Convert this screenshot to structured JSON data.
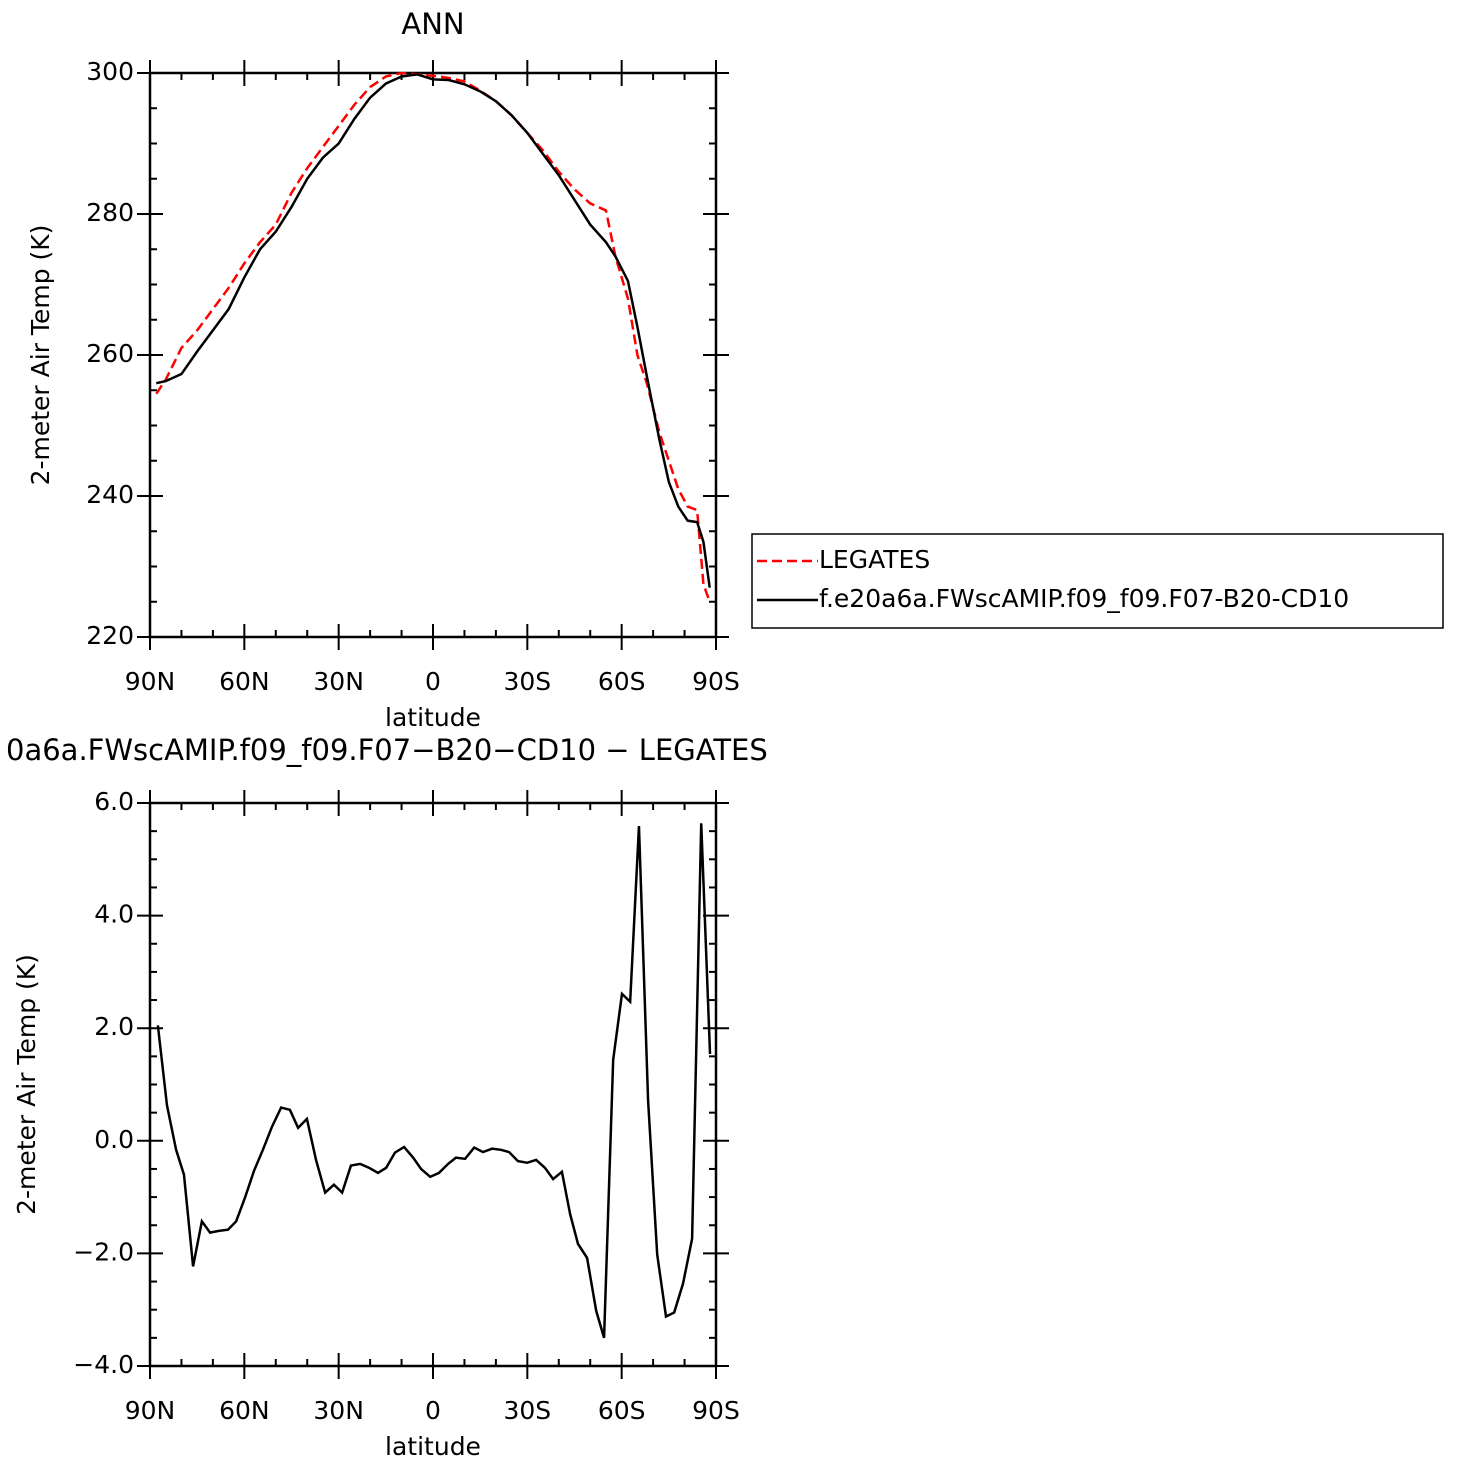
{
  "chart_data": [
    {
      "type": "line",
      "title": "ANN",
      "xlabel": "latitude",
      "ylabel": "2-meter Air Temp (K)",
      "x": [
        88,
        85,
        80,
        75,
        70,
        65,
        60,
        55,
        50,
        45,
        40,
        35,
        30,
        25,
        20,
        15,
        10,
        5,
        0,
        -5,
        -10,
        -15,
        -20,
        -25,
        -30,
        -35,
        -40,
        -45,
        -50,
        -55,
        -58,
        -62,
        -65,
        -68,
        -72,
        -75,
        -78,
        -81,
        -84,
        -86,
        -88
      ],
      "series": [
        {
          "name": "LEGATES",
          "color": "#ff0000",
          "style": "dashed",
          "values": [
            254.5,
            256.5,
            261,
            263.5,
            266.5,
            269.5,
            273,
            276,
            278.5,
            283,
            286.5,
            289.5,
            292.5,
            295.5,
            298,
            299.5,
            300,
            299.8,
            299.6,
            299.3,
            298.8,
            297.5,
            296,
            294,
            291.5,
            289,
            286,
            283.5,
            281.5,
            280.5,
            274,
            268,
            260,
            256,
            249,
            245,
            241,
            238.5,
            238,
            227.5,
            225
          ]
        },
        {
          "name": "f.e20a6a.FWscAMIP.f09_f09.F07-B20-CD10",
          "color": "#000000",
          "style": "solid",
          "values": [
            256,
            256.3,
            257.3,
            260.5,
            263.5,
            266.5,
            271,
            275,
            277.5,
            281,
            285,
            288,
            290,
            293.5,
            296.5,
            298.5,
            299.5,
            299.8,
            299.1,
            299,
            298.4,
            297.4,
            296,
            294,
            291.5,
            288.5,
            285.5,
            282,
            278.5,
            276,
            274,
            270.5,
            264,
            257,
            248,
            242,
            238.5,
            236.5,
            236.3,
            233.5,
            227
          ]
        }
      ],
      "xlim": [
        90,
        -90
      ],
      "xticks": [
        {
          "value": 90,
          "label": "90N"
        },
        {
          "value": 60,
          "label": "60N"
        },
        {
          "value": 30,
          "label": "30N"
        },
        0,
        {
          "value": -30,
          "label": "30S"
        },
        {
          "value": -60,
          "label": "60S"
        },
        {
          "value": -90,
          "label": "90S"
        }
      ],
      "xminorticks": [
        80,
        70,
        50,
        40,
        20,
        10,
        -10,
        -20,
        -40,
        -50,
        -70,
        -80
      ],
      "ylim": [
        220,
        300
      ],
      "yticks": [
        220,
        240,
        260,
        280,
        300
      ],
      "yminorticks": [
        225,
        230,
        235,
        245,
        250,
        255,
        265,
        270,
        275,
        285,
        290,
        295
      ],
      "legend": "right"
    },
    {
      "type": "line",
      "title": "0a6a.FWscAMIP.f09_f09.F07−B20−CD10 − LEGATES",
      "xlabel": "latitude",
      "ylabel": "2-meter Air Temp (K)",
      "x": [
        87.5,
        84.6,
        81.7,
        79.2,
        76.3,
        73.5,
        70.9,
        68.1,
        65.2,
        62.6,
        59.8,
        56.9,
        54.1,
        51.2,
        48.3,
        45.5,
        42.9,
        40.1,
        37.2,
        34.3,
        31.5,
        28.9,
        26.1,
        23.2,
        20.3,
        17.5,
        14.9,
        12.1,
        9.2,
        6.3,
        3.8,
        0.9,
        -1.9,
        -4.8,
        -7.3,
        -10.2,
        -13.1,
        -15.9,
        -18.8,
        -21.6,
        -24.2,
        -27.0,
        -29.9,
        -32.8,
        -35.6,
        -38.2,
        -41.0,
        -43.6,
        -46.1,
        -49.0,
        -51.9,
        -54.4,
        -57.3,
        -60.1,
        -62.7,
        -65.5,
        -68.4,
        -71.3,
        -74.1,
        -76.7,
        -79.5,
        -82.4,
        -85.3,
        -88.1
      ],
      "series": [
        {
          "color": "#000000",
          "style": "solid",
          "values": [
            2.05,
            0.63,
            -0.16,
            -0.6,
            -2.23,
            -1.43,
            -1.63,
            -1.6,
            -1.58,
            -1.43,
            -1.01,
            -0.53,
            -0.16,
            0.25,
            0.59,
            0.55,
            0.23,
            0.39,
            -0.34,
            -0.92,
            -0.78,
            -0.92,
            -0.44,
            -0.41,
            -0.48,
            -0.57,
            -0.48,
            -0.21,
            -0.11,
            -0.3,
            -0.5,
            -0.64,
            -0.57,
            -0.41,
            -0.3,
            -0.32,
            -0.12,
            -0.2,
            -0.14,
            -0.16,
            -0.2,
            -0.36,
            -0.39,
            -0.34,
            -0.48,
            -0.68,
            -0.55,
            -1.3,
            -1.83,
            -2.08,
            -3.02,
            -3.5,
            1.44,
            2.61,
            2.47,
            5.59,
            0.72,
            -2.02,
            -3.12,
            -3.05,
            -2.54,
            -1.74,
            5.64,
            1.54
          ]
        }
      ],
      "xlim": [
        90,
        -90
      ],
      "xticks": [
        {
          "value": 90,
          "label": "90N"
        },
        {
          "value": 60,
          "label": "60N"
        },
        {
          "value": 30,
          "label": "30N"
        },
        0,
        {
          "value": -30,
          "label": "30S"
        },
        {
          "value": -60,
          "label": "60S"
        },
        {
          "value": -90,
          "label": "90S"
        }
      ],
      "xminorticks": [
        80,
        70,
        50,
        40,
        20,
        10,
        -10,
        -20,
        -40,
        -50,
        -70,
        -80
      ],
      "ylim": [
        -4,
        6
      ],
      "yticks": [
        {
          "value": -4,
          "label": "−4.0"
        },
        {
          "value": -2,
          "label": "−2.0"
        },
        {
          "value": 0,
          "label": "0.0"
        },
        {
          "value": 2,
          "label": "2.0"
        },
        {
          "value": 4,
          "label": "4.0"
        },
        {
          "value": 6,
          "label": "6.0"
        }
      ],
      "yminorticks": [
        -3.5,
        -3,
        -2.5,
        -1.5,
        -1,
        -0.5,
        0.5,
        1,
        1.5,
        2.5,
        3,
        3.5,
        4.5,
        5,
        5.5
      ]
    }
  ]
}
